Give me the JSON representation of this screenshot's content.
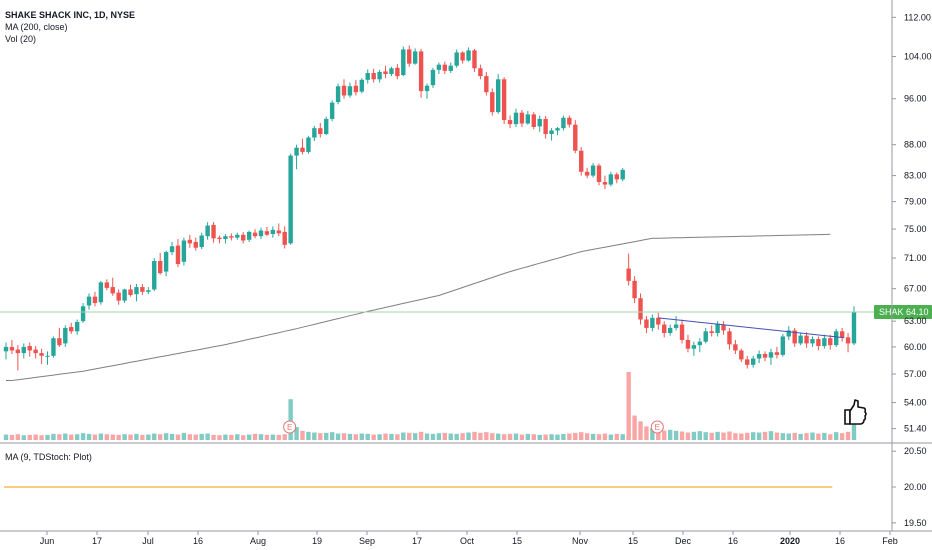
{
  "legend": {
    "title": "SHAKE SHACK INC, 1D, NYSE",
    "ma": "MA (200, close)",
    "vol": "Vol (20)"
  },
  "sub_legend": "MA (9, TDStoch: Plot)",
  "price_badge": {
    "symbol": "SHAK",
    "value": "64.10"
  },
  "colors": {
    "up": "#26a69a",
    "down": "#ef5350",
    "vol_up": "#80cbc4",
    "vol_down": "#f8a5a5",
    "ma": "#7f7f7f",
    "trendline": "#3f51b5",
    "last_line": "#a5d6a7",
    "badge": "#4caf50",
    "stoch": "#ff9800"
  },
  "earnings_marker": "E",
  "chart_data": [
    {
      "type": "candlestick",
      "scale": "log",
      "y_ticks": [
        112,
        104,
        96,
        88,
        83,
        79,
        75,
        71,
        67,
        63,
        60,
        57,
        54,
        51.4
      ],
      "x_ticks": [
        "Jun",
        "17",
        "Jul",
        "16",
        "Aug",
        "19",
        "Sep",
        "17",
        "Oct",
        "15",
        "Nov",
        "15",
        "Dec",
        "16",
        "2020",
        "16",
        "Feb"
      ],
      "x_tick_bold": [
        "2020"
      ],
      "ylim": [
        50.4,
        114
      ],
      "candles": [
        [
          59.5,
          60.5,
          58.6,
          60.0
        ],
        [
          60.0,
          60.8,
          59.2,
          59.6
        ],
        [
          59.7,
          60.2,
          57.4,
          59.3
        ],
        [
          59.3,
          60.4,
          58.7,
          60.0
        ],
        [
          60.1,
          60.5,
          58.9,
          59.6
        ],
        [
          59.7,
          60.1,
          58.7,
          59.3
        ],
        [
          59.3,
          59.8,
          58.1,
          59.0
        ],
        [
          59.0,
          59.5,
          58.0,
          59.0
        ],
        [
          59.0,
          61.2,
          58.8,
          61.0
        ],
        [
          61.0,
          62.2,
          60.0,
          60.2
        ],
        [
          60.4,
          62.5,
          60.0,
          62.2
        ],
        [
          62.3,
          62.8,
          61.5,
          61.8
        ],
        [
          61.8,
          63.2,
          61.4,
          62.9
        ],
        [
          63.0,
          65.2,
          62.8,
          64.8
        ],
        [
          64.9,
          66.4,
          64.4,
          66.0
        ],
        [
          66.0,
          66.6,
          64.8,
          65.2
        ],
        [
          65.3,
          68.0,
          65.0,
          67.8
        ],
        [
          67.8,
          68.2,
          66.8,
          67.1
        ],
        [
          67.2,
          68.4,
          66.1,
          66.4
        ],
        [
          66.5,
          66.9,
          65.0,
          65.5
        ],
        [
          65.5,
          67.0,
          65.2,
          66.9
        ],
        [
          66.9,
          67.5,
          66.0,
          66.2
        ],
        [
          66.3,
          67.6,
          65.4,
          67.2
        ],
        [
          67.2,
          67.6,
          66.2,
          66.6
        ],
        [
          66.6,
          67.2,
          66.3,
          66.8
        ],
        [
          66.9,
          71.0,
          66.7,
          70.6
        ],
        [
          70.6,
          71.7,
          68.8,
          69.0
        ],
        [
          69.2,
          72.0,
          68.6,
          71.8
        ],
        [
          71.8,
          73.2,
          71.4,
          72.6
        ],
        [
          72.7,
          73.6,
          69.8,
          70.2
        ],
        [
          70.5,
          73.8,
          70.0,
          73.4
        ],
        [
          73.5,
          74.2,
          72.4,
          73.0
        ],
        [
          73.2,
          73.8,
          72.0,
          72.4
        ],
        [
          72.5,
          74.5,
          72.2,
          74.1
        ],
        [
          74.0,
          76.0,
          73.5,
          75.5
        ],
        [
          75.6,
          76.0,
          73.1,
          73.7
        ],
        [
          73.8,
          74.1,
          73.0,
          73.6
        ],
        [
          73.6,
          74.3,
          73.0,
          74.0
        ],
        [
          74.0,
          74.4,
          73.4,
          73.8
        ],
        [
          73.8,
          74.5,
          73.5,
          74.2
        ],
        [
          74.2,
          74.6,
          73.0,
          73.4
        ],
        [
          73.5,
          74.8,
          73.2,
          74.6
        ],
        [
          74.5,
          75.0,
          73.7,
          74.0
        ],
        [
          74.0,
          75.2,
          73.6,
          74.8
        ],
        [
          74.7,
          75.3,
          74.0,
          74.2
        ],
        [
          74.3,
          75.4,
          73.8,
          74.9
        ],
        [
          74.8,
          75.8,
          74.0,
          74.4
        ],
        [
          74.6,
          75.4,
          72.3,
          72.8
        ],
        [
          73.0,
          86.5,
          72.8,
          86.2
        ],
        [
          86.2,
          88.0,
          84.0,
          87.5
        ],
        [
          87.5,
          89.0,
          86.4,
          86.8
        ],
        [
          86.8,
          89.5,
          86.5,
          89.2
        ],
        [
          89.2,
          91.2,
          88.6,
          90.8
        ],
        [
          90.8,
          91.7,
          89.2,
          89.8
        ],
        [
          89.8,
          92.8,
          89.6,
          92.4
        ],
        [
          92.4,
          95.7,
          92.0,
          95.3
        ],
        [
          95.4,
          98.8,
          95.0,
          98.3
        ],
        [
          98.4,
          99.6,
          96.0,
          96.6
        ],
        [
          96.6,
          99.0,
          96.2,
          98.3
        ],
        [
          98.4,
          99.5,
          96.6,
          97.2
        ],
        [
          97.3,
          99.8,
          97.0,
          99.5
        ],
        [
          99.5,
          101.5,
          98.8,
          100.8
        ],
        [
          100.8,
          101.6,
          99.0,
          99.6
        ],
        [
          99.6,
          101.4,
          99.0,
          101.0
        ],
        [
          101.1,
          102.2,
          99.8,
          100.6
        ],
        [
          100.6,
          102.0,
          100.2,
          101.7
        ],
        [
          101.8,
          102.5,
          99.6,
          100.2
        ],
        [
          100.4,
          106.0,
          100.2,
          105.4
        ],
        [
          105.4,
          106.2,
          102.0,
          102.6
        ],
        [
          102.6,
          105.6,
          102.4,
          105.0
        ],
        [
          105.0,
          105.5,
          96.2,
          97.4
        ],
        [
          97.4,
          98.8,
          96.0,
          98.4
        ],
        [
          98.5,
          101.8,
          98.0,
          101.4
        ],
        [
          101.4,
          102.8,
          100.6,
          102.4
        ],
        [
          102.4,
          103.0,
          100.6,
          101.2
        ],
        [
          101.2,
          102.8,
          100.8,
          102.2
        ],
        [
          102.2,
          105.4,
          101.8,
          104.8
        ],
        [
          104.8,
          105.0,
          102.6,
          103.2
        ],
        [
          103.2,
          105.8,
          103.0,
          105.2
        ],
        [
          105.2,
          105.5,
          101.0,
          101.7
        ],
        [
          101.7,
          102.4,
          99.6,
          100.2
        ],
        [
          100.2,
          101.0,
          96.6,
          97.2
        ],
        [
          97.2,
          97.9,
          93.0,
          93.6
        ],
        [
          93.6,
          100.6,
          93.3,
          99.6
        ],
        [
          99.6,
          100.0,
          91.5,
          92.2
        ],
        [
          92.2,
          93.0,
          90.8,
          91.5
        ],
        [
          91.5,
          94.2,
          91.0,
          93.5
        ],
        [
          93.5,
          94.0,
          91.0,
          91.6
        ],
        [
          91.6,
          93.8,
          91.4,
          93.2
        ],
        [
          93.2,
          93.6,
          90.6,
          91.0
        ],
        [
          91.1,
          93.0,
          90.2,
          92.4
        ],
        [
          92.4,
          92.9,
          89.0,
          89.8
        ],
        [
          89.8,
          90.8,
          88.7,
          90.4
        ],
        [
          90.4,
          91.0,
          89.6,
          90.8
        ],
        [
          90.8,
          93.0,
          90.4,
          92.6
        ],
        [
          92.6,
          93.0,
          90.9,
          91.4
        ],
        [
          91.4,
          92.2,
          86.6,
          87.0
        ],
        [
          87.0,
          87.6,
          83.0,
          83.6
        ],
        [
          83.6,
          84.2,
          82.6,
          83.0
        ],
        [
          83.0,
          85.0,
          82.7,
          84.6
        ],
        [
          84.6,
          84.9,
          81.5,
          82.0
        ],
        [
          82.0,
          83.0,
          80.9,
          81.6
        ],
        [
          81.6,
          83.6,
          81.3,
          83.2
        ],
        [
          83.2,
          83.5,
          81.8,
          82.4
        ],
        [
          82.4,
          84.2,
          82.1,
          83.9
        ],
        [
          69.6,
          71.6,
          67.4,
          68.0
        ],
        [
          68.0,
          68.6,
          65.2,
          65.8
        ],
        [
          65.8,
          66.4,
          62.6,
          63.2
        ],
        [
          63.2,
          63.6,
          61.6,
          62.2
        ],
        [
          62.2,
          63.8,
          61.8,
          63.4
        ],
        [
          63.4,
          64.0,
          62.0,
          62.6
        ],
        [
          62.6,
          63.0,
          61.1,
          61.6
        ],
        [
          61.6,
          62.6,
          61.3,
          62.2
        ],
        [
          62.2,
          63.6,
          61.9,
          62.6
        ],
        [
          62.6,
          63.2,
          60.4,
          60.8
        ],
        [
          60.8,
          61.4,
          59.4,
          59.8
        ],
        [
          59.8,
          60.6,
          59.0,
          60.2
        ],
        [
          60.2,
          61.0,
          59.4,
          60.6
        ],
        [
          60.6,
          62.2,
          60.4,
          61.8
        ],
        [
          61.8,
          62.5,
          61.2,
          61.6
        ],
        [
          61.6,
          63.0,
          61.2,
          62.7
        ],
        [
          62.6,
          63.0,
          61.4,
          61.9
        ],
        [
          61.8,
          62.2,
          59.7,
          60.3
        ],
        [
          60.3,
          60.8,
          59.2,
          59.6
        ],
        [
          59.6,
          59.8,
          58.3,
          58.6
        ],
        [
          58.6,
          59.0,
          57.6,
          58.0
        ],
        [
          58.0,
          59.0,
          57.7,
          58.7
        ],
        [
          58.7,
          59.6,
          58.2,
          59.2
        ],
        [
          59.2,
          59.5,
          58.4,
          58.8
        ],
        [
          58.8,
          59.8,
          58.0,
          59.4
        ],
        [
          59.4,
          60.0,
          58.7,
          59.1
        ],
        [
          59.1,
          61.5,
          58.9,
          61.2
        ],
        [
          61.2,
          62.4,
          60.8,
          61.9
        ],
        [
          61.9,
          62.2,
          60.0,
          60.4
        ],
        [
          60.4,
          61.6,
          60.2,
          61.3
        ],
        [
          61.3,
          61.7,
          59.9,
          60.4
        ],
        [
          60.4,
          61.2,
          60.0,
          60.9
        ],
        [
          60.9,
          61.2,
          59.6,
          60.1
        ],
        [
          60.1,
          61.4,
          59.8,
          61.0
        ],
        [
          61.0,
          61.4,
          59.7,
          60.2
        ],
        [
          60.2,
          62.1,
          60.0,
          61.8
        ],
        [
          61.8,
          62.2,
          60.6,
          61.1
        ],
        [
          61.1,
          61.6,
          59.4,
          60.4
        ],
        [
          60.4,
          64.8,
          60.2,
          64.1
        ]
      ],
      "volume": [
        16,
        15,
        17,
        14,
        15,
        16,
        14,
        15,
        18,
        17,
        19,
        16,
        17,
        20,
        18,
        16,
        19,
        17,
        16,
        15,
        17,
        16,
        18,
        15,
        16,
        19,
        17,
        20,
        18,
        16,
        21,
        17,
        16,
        18,
        19,
        15,
        14,
        16,
        15,
        17,
        14,
        16,
        18,
        17,
        15,
        16,
        15,
        17,
        120,
        38,
        27,
        24,
        22,
        20,
        21,
        23,
        19,
        20,
        18,
        17,
        19,
        18,
        16,
        17,
        19,
        18,
        17,
        22,
        21,
        20,
        24,
        19,
        18,
        20,
        21,
        19,
        18,
        20,
        22,
        24,
        21,
        23,
        20,
        19,
        17,
        18,
        19,
        16,
        18,
        17,
        15,
        16,
        17,
        16,
        18,
        19,
        21,
        23,
        20,
        18,
        17,
        19,
        16,
        18,
        17,
        200,
        72,
        55,
        40,
        35,
        32,
        28,
        30,
        27,
        25,
        22,
        24,
        26,
        23,
        21,
        24,
        22,
        25,
        20,
        19,
        21,
        23,
        22,
        24,
        26,
        22,
        20,
        19,
        21,
        18,
        20,
        22,
        19,
        21,
        17,
        23,
        20,
        24,
        65
      ],
      "ma200": [
        [
          1,
          5
        ],
        [
          13,
          12
        ],
        [
          25,
          22
        ],
        [
          37,
          32
        ],
        [
          49,
          44
        ],
        [
          61,
          57
        ],
        [
          73,
          69.0
        ],
        [
          85,
          87
        ],
        [
          97,
          102
        ],
        [
          109,
          112
        ]
      ],
      "trendline": {
        "from": [
          110,
          63.4
        ],
        "to": [
          139,
          61.0
        ]
      },
      "last_price": 64.1,
      "earnings": [
        48,
        110
      ]
    },
    {
      "type": "line",
      "name": "MA (9, TDStoch: Plot)",
      "y_ticks": [
        20.5,
        20.0,
        19.5
      ],
      "ylim": [
        19.4,
        20.6
      ],
      "values_constant": 20.0
    }
  ]
}
